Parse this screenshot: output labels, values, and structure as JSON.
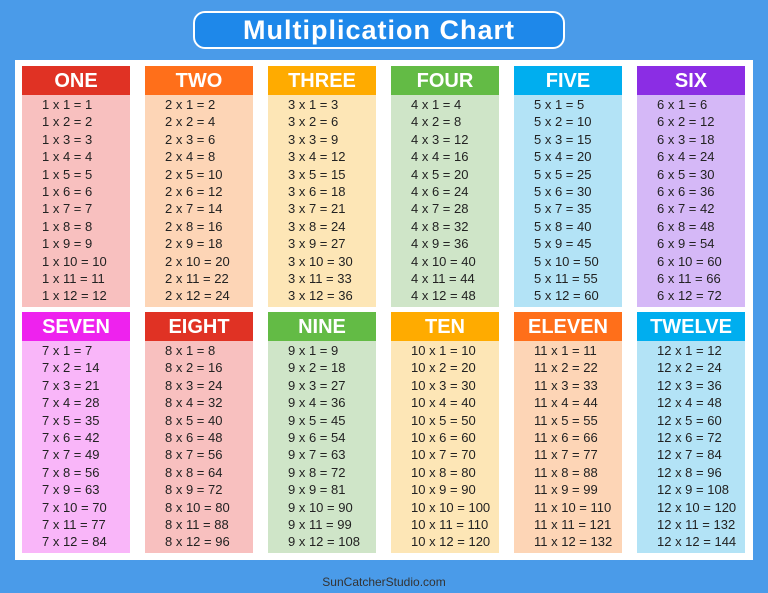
{
  "title": "Multiplication Chart",
  "footer": "SunCatcherStudio.com",
  "tables": [
    {
      "name": "ONE",
      "header_color": "#e03224",
      "body_color": "#f8c0bf",
      "rows": [
        "1 x 1 = 1",
        "1 x 2 = 2",
        "1 x 3 = 3",
        "1 x 4 = 4",
        "1 x 5 = 5",
        "1 x 6 = 6",
        "1 x 7 = 7",
        "1 x 8 = 8",
        "1 x 9 = 9",
        "1 x 10 = 10",
        "1 x 11 = 11",
        "1 x 12 = 12"
      ]
    },
    {
      "name": "TWO",
      "header_color": "#ff6f1a",
      "body_color": "#fdd5b6",
      "rows": [
        "2 x 1 = 2",
        "2 x 2 = 4",
        "2 x 3 = 6",
        "2 x 4 = 8",
        "2 x 5 = 10",
        "2 x 6 = 12",
        "2 x 7 = 14",
        "2 x 8 = 16",
        "2 x 9 = 18",
        "2 x 10 = 20",
        "2 x 11 = 22",
        "2 x 12 = 24"
      ]
    },
    {
      "name": "THREE",
      "header_color": "#ffab00",
      "body_color": "#fde6b6",
      "rows": [
        "3 x 1 = 3",
        "3 x 2 = 6",
        "3 x 3 = 9",
        "3 x 4 = 12",
        "3 x 5 = 15",
        "3 x 6 = 18",
        "3 x 7 = 21",
        "3 x 8 = 24",
        "3 x 9 = 27",
        "3 x 10 = 30",
        "3 x 11 = 33",
        "3 x 12 = 36"
      ]
    },
    {
      "name": "FOUR",
      "header_color": "#63bb45",
      "body_color": "#cfe5c8",
      "rows": [
        "4 x 1 = 4",
        "4 x 2 = 8",
        "4 x 3 = 12",
        "4 x 4 = 16",
        "4 x 5 = 20",
        "4 x 6 = 24",
        "4 x 7 = 28",
        "4 x 8 = 32",
        "4 x 9 = 36",
        "4 x 10 = 40",
        "4 x 11 = 44",
        "4 x 12 = 48"
      ]
    },
    {
      "name": "FIVE",
      "header_color": "#00aeef",
      "body_color": "#b3e3f6",
      "rows": [
        "5 x 1 = 5",
        "5 x 2 = 10",
        "5 x 3 = 15",
        "5 x 4 = 20",
        "5 x 5 = 25",
        "5 x 6 = 30",
        "5 x 7 = 35",
        "5 x 8 = 40",
        "5 x 9 = 45",
        "5 x 10 = 50",
        "5 x 11 = 55",
        "5 x 12 = 60"
      ]
    },
    {
      "name": "SIX",
      "header_color": "#8b2de4",
      "body_color": "#d5b8f7",
      "rows": [
        "6 x 1 = 6",
        "6 x 2 = 12",
        "6 x 3 = 18",
        "6 x 4 = 24",
        "6 x 5 = 30",
        "6 x 6 = 36",
        "6 x 7 = 42",
        "6 x 8 = 48",
        "6 x 9 = 54",
        "6 x 10 = 60",
        "6 x 11 = 66",
        "6 x 12 = 72"
      ]
    },
    {
      "name": "SEVEN",
      "header_color": "#ee22ee",
      "body_color": "#f9b6f9",
      "rows": [
        "7 x 1 = 7",
        "7 x 2 = 14",
        "7 x 3 = 21",
        "7 x 4 = 28",
        "7 x 5 = 35",
        "7 x 6 = 42",
        "7 x 7 = 49",
        "7 x 8 = 56",
        "7 x 9 = 63",
        "7 x 10 = 70",
        "7 x 11 = 77",
        "7 x 12 = 84"
      ]
    },
    {
      "name": "EIGHT",
      "header_color": "#e03224",
      "body_color": "#f8c0bf",
      "rows": [
        "8 x 1 = 8",
        "8 x 2 = 16",
        "8 x 3 = 24",
        "8 x 4 = 32",
        "8 x 5 = 40",
        "8 x 6 = 48",
        "8 x 7 = 56",
        "8 x 8 = 64",
        "8 x 9 = 72",
        "8 x 10 = 80",
        "8 x 11 = 88",
        "8 x 12 = 96"
      ]
    },
    {
      "name": "NINE",
      "header_color": "#63bb45",
      "body_color": "#cfe5c8",
      "rows": [
        "9 x 1 = 9",
        "9 x 2 = 18",
        "9 x 3 = 27",
        "9 x 4 = 36",
        "9 x 5 = 45",
        "9 x 6 = 54",
        "9 x 7 = 63",
        "9 x 8 = 72",
        "9 x 9 = 81",
        "9 x 10 = 90",
        "9 x 11 = 99",
        "9 x 12 = 108"
      ]
    },
    {
      "name": "TEN",
      "header_color": "#ffab00",
      "body_color": "#fde6b6",
      "rows": [
        "10 x 1 = 10",
        "10 x 2 = 20",
        "10 x 3 = 30",
        "10 x 4 = 40",
        "10 x 5 = 50",
        "10 x 6 = 60",
        "10 x 7 = 70",
        "10 x 8 = 80",
        "10 x 9 = 90",
        "10 x 10 = 100",
        "10 x 11 = 110",
        "10 x 12 = 120"
      ]
    },
    {
      "name": "ELEVEN",
      "header_color": "#ff6f1a",
      "body_color": "#fdd5b6",
      "rows": [
        "11 x 1 = 11",
        "11 x 2 = 22",
        "11 x 3 = 33",
        "11 x 4 = 44",
        "11 x 5 = 55",
        "11 x 6 = 66",
        "11 x 7 = 77",
        "11 x 8 = 88",
        "11 x 9 = 99",
        "11 x 10 = 110",
        "11 x 11 = 121",
        "11 x 12 = 132"
      ]
    },
    {
      "name": "TWELVE",
      "header_color": "#00aeef",
      "body_color": "#b3e3f6",
      "rows": [
        "12 x 1 = 12",
        "12 x 2 = 24",
        "12 x 3 = 36",
        "12 x 4 = 48",
        "12 x 5 = 60",
        "12 x 6 = 72",
        "12 x 7 = 84",
        "12 x 8 = 96",
        "12 x 9 = 108",
        "12 x 10 = 120",
        "12 x 11 = 132",
        "12 x 12 = 144"
      ]
    }
  ]
}
